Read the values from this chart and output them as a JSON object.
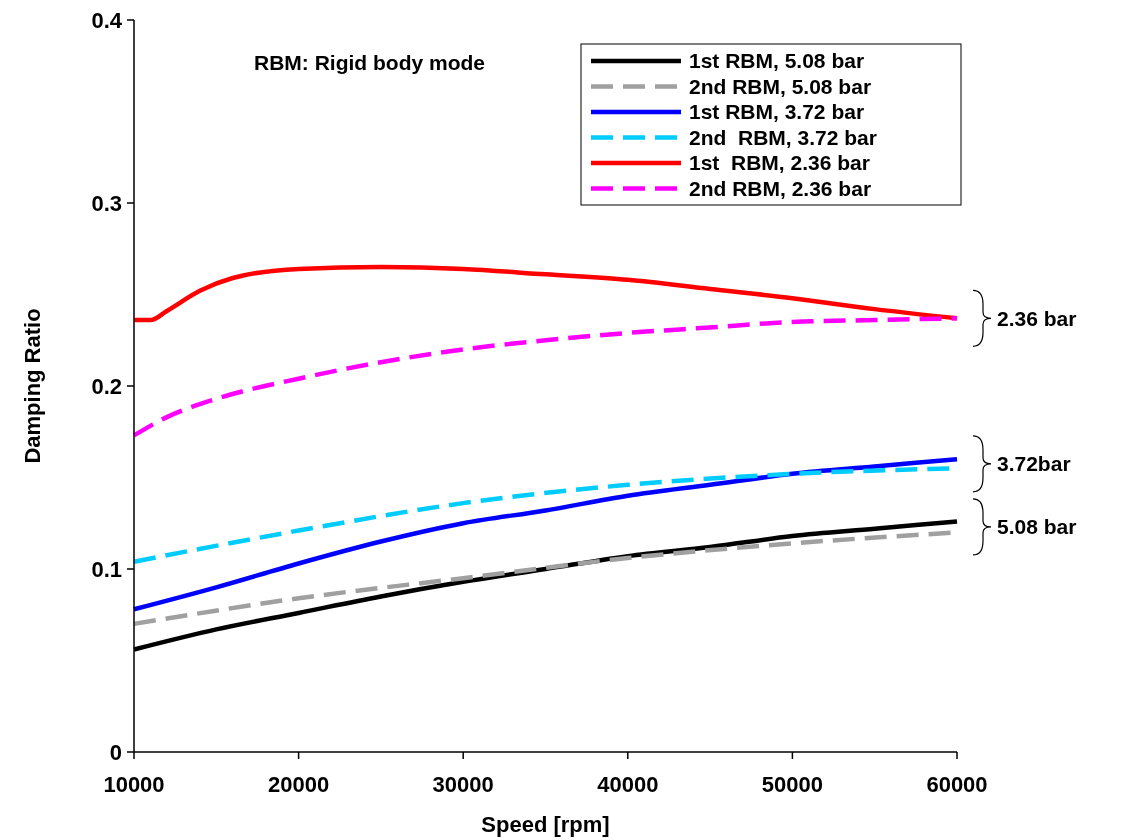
{
  "chart_data": {
    "type": "line",
    "xlabel": "Speed [rpm]",
    "ylabel": "Damping Ratio",
    "xlim": [
      10000,
      60000
    ],
    "xticks": [
      10000,
      20000,
      30000,
      40000,
      50000,
      60000
    ],
    "ylim": [
      0,
      0.4
    ],
    "yticks": [
      0,
      0.1,
      0.2,
      0.3,
      0.4
    ],
    "grid": false,
    "legend": "top right",
    "marker": "none",
    "annotations": [
      "RBM: Rigid body mode",
      "2.36 bar",
      "3.72bar",
      "5.08 bar"
    ],
    "series": [
      {
        "name": "1st RBM, 5.08 bar",
        "color": "#000000",
        "line_style": "solid",
        "x": [
          10000,
          15000,
          20000,
          25000,
          30000,
          35000,
          40000,
          45000,
          50000,
          55000,
          60000
        ],
        "values": [
          0.056,
          0.067,
          0.076,
          0.085,
          0.093,
          0.1,
          0.107,
          0.112,
          0.118,
          0.122,
          0.126
        ]
      },
      {
        "name": "2nd RBM, 5.08 bar",
        "color": "#a0a0a0",
        "line_style": "dashed",
        "x": [
          10000,
          20000,
          30000,
          40000,
          50000,
          60000
        ],
        "values": [
          0.07,
          0.084,
          0.095,
          0.106,
          0.114,
          0.12
        ]
      },
      {
        "name": "1st RBM, 3.72 bar",
        "color": "#0000ff",
        "line_style": "solid",
        "x": [
          10000,
          15000,
          20000,
          25000,
          30000,
          35000,
          40000,
          45000,
          50000,
          55000,
          60000
        ],
        "values": [
          0.078,
          0.09,
          0.103,
          0.115,
          0.125,
          0.132,
          0.14,
          0.146,
          0.152,
          0.156,
          0.16
        ]
      },
      {
        "name": "2nd  RBM, 3.72 bar",
        "color": "#00ccff",
        "line_style": "dashed",
        "x": [
          10000,
          20000,
          30000,
          40000,
          50000,
          60000
        ],
        "values": [
          0.104,
          0.121,
          0.136,
          0.146,
          0.152,
          0.155
        ]
      },
      {
        "name": "1st  RBM, 2.36 bar",
        "color": "#ff0000",
        "line_style": "solid",
        "x": [
          10000,
          11000,
          12000,
          14000,
          16000,
          20000,
          25000,
          30000,
          35000,
          40000,
          45000,
          50000,
          55000,
          60000
        ],
        "values": [
          0.236,
          0.236,
          0.241,
          0.252,
          0.259,
          0.264,
          0.265,
          0.264,
          0.261,
          0.258,
          0.253,
          0.248,
          0.242,
          0.237
        ]
      },
      {
        "name": "2nd RBM, 2.36 bar",
        "color": "#ff00ff",
        "line_style": "dashed",
        "x": [
          10000,
          12000,
          15000,
          20000,
          25000,
          30000,
          35000,
          40000,
          45000,
          50000,
          55000,
          60000
        ],
        "values": [
          0.173,
          0.183,
          0.193,
          0.204,
          0.213,
          0.22,
          0.225,
          0.229,
          0.232,
          0.235,
          0.236,
          0.237
        ]
      }
    ]
  }
}
